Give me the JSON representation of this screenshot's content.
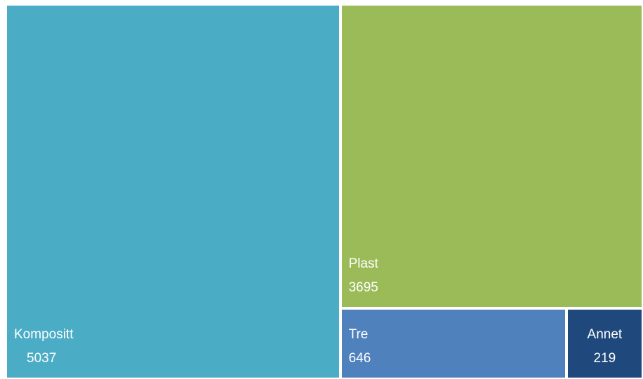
{
  "chart_data": {
    "type": "treemap",
    "title": "",
    "categories": [
      "Kompositt",
      "Plast",
      "Tre",
      "Annet"
    ],
    "values": [
      5037,
      3695,
      646,
      219
    ],
    "colors": [
      "#4bacc6",
      "#9bbb59",
      "#4f81bd",
      "#1f497d"
    ]
  }
}
